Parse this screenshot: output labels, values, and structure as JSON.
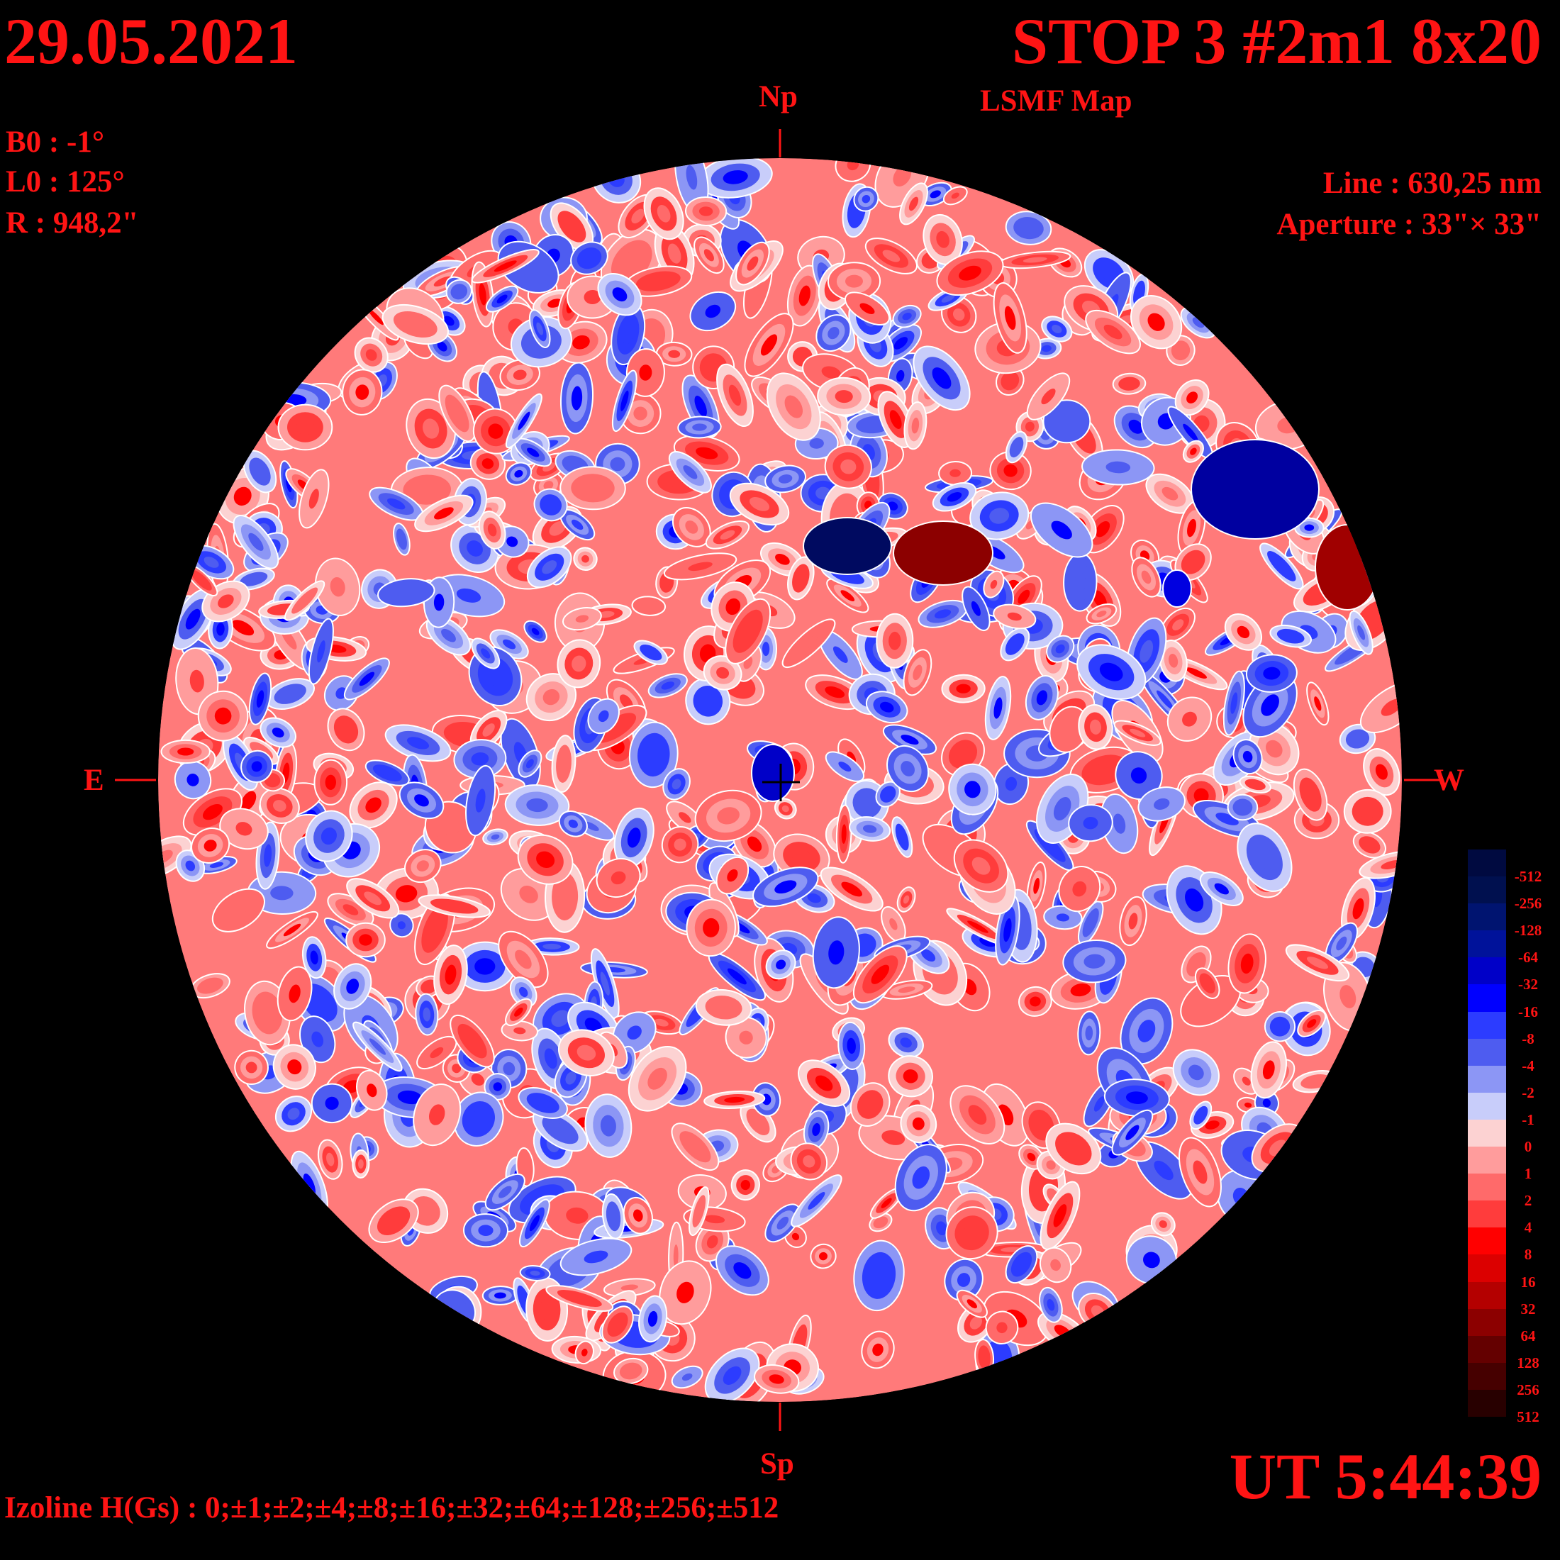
{
  "header": {
    "date": "29.05.2021",
    "title": "STOP 3 #2m1 8x20",
    "map_type": "LSMF  Map"
  },
  "params": {
    "b0": "B0 : -1°",
    "l0": "L0 : 125°",
    "r": "R  : 948,2\""
  },
  "instrument": {
    "line": "Line :  630,25 nm",
    "aperture": "Aperture : 33\"× 33\""
  },
  "compass": {
    "north": "Np",
    "south": "Sp",
    "east": "E",
    "west": "W"
  },
  "time": "UT 5:44:39",
  "izoline": "Izoline H(Gs) : 0;±1;±2;±4;±8;±16;±32;±64;±128;±256;±512",
  "colorbar": {
    "labels": [
      "-512",
      "-256",
      "-128",
      "-64",
      "-32",
      "-16",
      "-8",
      "-4",
      "-2",
      "-1",
      "0",
      "1",
      "2",
      "4",
      "8",
      "16",
      "32",
      "64",
      "128",
      "256",
      "512"
    ],
    "colors": [
      "#000a40",
      "#00104f",
      "#001470",
      "#00129a",
      "#0000c8",
      "#0000ff",
      "#2c3cff",
      "#4e5cf0",
      "#8c96f5",
      "#c8cdfa",
      "#fcd2d2",
      "#ff9c9c",
      "#ff6a6a",
      "#ff3c3c",
      "#ff0000",
      "#dc0000",
      "#b40000",
      "#8c0000",
      "#640000",
      "#460000",
      "#280000"
    ]
  },
  "colors": {
    "text": "#ff1414",
    "background": "#000000",
    "positive": "#ff0000",
    "negative": "#0000ff",
    "izoline": "#ffffff"
  }
}
